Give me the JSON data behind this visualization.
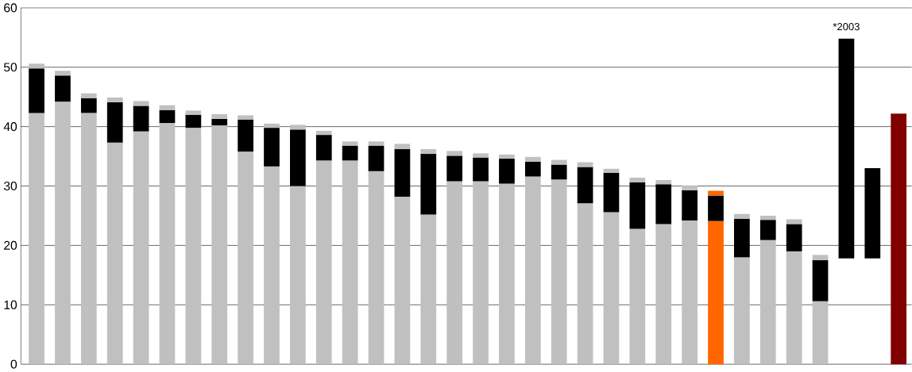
{
  "chart_data": {
    "type": "bar",
    "stacked": true,
    "categories": [
      null,
      null,
      null,
      null,
      null,
      null,
      null,
      null,
      null,
      null,
      null,
      null,
      null,
      null,
      null,
      null,
      null,
      null,
      null,
      null,
      null,
      null,
      null,
      null,
      null,
      null,
      null,
      null,
      null,
      null,
      null,
      null,
      null,
      null
    ],
    "series": [
      {
        "colors": [
          "#c0c0c0",
          "#c0c0c0",
          "#c0c0c0",
          "#c0c0c0",
          "#c0c0c0",
          "#c0c0c0",
          "#c0c0c0",
          "#c0c0c0",
          "#c0c0c0",
          "#c0c0c0",
          "#c0c0c0",
          "#c0c0c0",
          "#c0c0c0",
          "#c0c0c0",
          "#c0c0c0",
          "#c0c0c0",
          "#c0c0c0",
          "#c0c0c0",
          "#c0c0c0",
          "#c0c0c0",
          "#c0c0c0",
          "#c0c0c0",
          "#c0c0c0",
          "#c0c0c0",
          "#c0c0c0",
          "#c0c0c0",
          "#ff6600",
          "#c0c0c0",
          "#c0c0c0",
          "#c0c0c0",
          "#c0c0c0",
          null,
          null,
          "#800000"
        ],
        "values": [
          42.3,
          44.2,
          42.3,
          37.3,
          39.2,
          40.6,
          39.8,
          40.2,
          35.8,
          33.3,
          30.0,
          34.3,
          34.3,
          32.5,
          28.2,
          25.2,
          30.8,
          30.8,
          30.4,
          31.6,
          31.1,
          27.1,
          25.6,
          22.8,
          23.6,
          24.2,
          24.1,
          18.0,
          20.9,
          19.0,
          10.6,
          null,
          null,
          42.2
        ]
      },
      {
        "color": "#000000",
        "values": [
          7.5,
          4.4,
          2.5,
          6.8,
          4.3,
          2.2,
          2.2,
          1.1,
          5.4,
          6.5,
          9.5,
          4.3,
          2.5,
          4.3,
          8.0,
          10.2,
          4.3,
          4.0,
          4.2,
          2.5,
          2.5,
          6.1,
          6.6,
          7.8,
          6.7,
          5.1,
          4.3,
          6.5,
          3.4,
          4.6,
          6.9,
          37.0,
          15.2,
          null
        ],
        "base": [
          null,
          null,
          null,
          null,
          null,
          null,
          null,
          null,
          null,
          null,
          null,
          null,
          null,
          null,
          null,
          null,
          null,
          null,
          null,
          null,
          null,
          null,
          null,
          null,
          null,
          null,
          null,
          null,
          null,
          null,
          null,
          17.8,
          17.8,
          null
        ]
      },
      {
        "colors": [
          "#c0c0c0",
          "#c0c0c0",
          "#c0c0c0",
          "#c0c0c0",
          "#c0c0c0",
          "#c0c0c0",
          "#c0c0c0",
          "#c0c0c0",
          "#c0c0c0",
          "#c0c0c0",
          "#c0c0c0",
          "#c0c0c0",
          "#c0c0c0",
          "#c0c0c0",
          "#c0c0c0",
          "#c0c0c0",
          "#c0c0c0",
          "#c0c0c0",
          "#c0c0c0",
          "#c0c0c0",
          "#c0c0c0",
          "#c0c0c0",
          "#c0c0c0",
          "#c0c0c0",
          "#c0c0c0",
          "#c0c0c0",
          "#ff6600",
          "#c0c0c0",
          "#c0c0c0",
          "#c0c0c0",
          "#c0c0c0",
          null,
          null,
          null
        ],
        "values": [
          0.8,
          0.8,
          0.8,
          0.8,
          0.8,
          0.8,
          0.7,
          0.8,
          0.7,
          0.7,
          0.8,
          0.7,
          0.7,
          0.7,
          0.9,
          0.8,
          0.8,
          0.7,
          0.7,
          0.8,
          0.8,
          0.8,
          0.7,
          0.8,
          0.7,
          0.8,
          0.8,
          0.8,
          0.7,
          0.8,
          0.9,
          null,
          null,
          null
        ]
      }
    ],
    "ylim": [
      0,
      60
    ],
    "yticks": [
      0,
      10,
      20,
      30,
      40,
      50,
      60
    ],
    "grid": "y",
    "tick_labels": "y",
    "annotations": [
      "*2003"
    ]
  }
}
